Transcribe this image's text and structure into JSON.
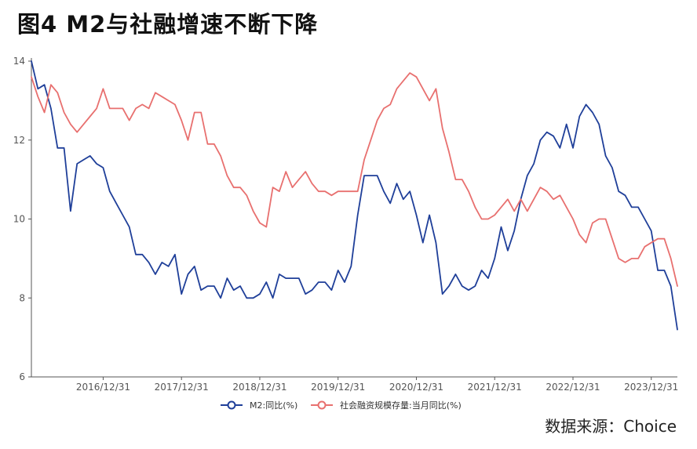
{
  "title": "图4  M2与社融增速不断下降",
  "source": "数据来源：Choice",
  "chart_data": {
    "type": "line",
    "x": [
      "2016/01",
      "2016/02",
      "2016/03",
      "2016/04",
      "2016/05",
      "2016/06",
      "2016/07",
      "2016/08",
      "2016/09",
      "2016/10",
      "2016/11",
      "2016/12",
      "2017/01",
      "2017/02",
      "2017/03",
      "2017/04",
      "2017/05",
      "2017/06",
      "2017/07",
      "2017/08",
      "2017/09",
      "2017/10",
      "2017/11",
      "2017/12",
      "2018/01",
      "2018/02",
      "2018/03",
      "2018/04",
      "2018/05",
      "2018/06",
      "2018/07",
      "2018/08",
      "2018/09",
      "2018/10",
      "2018/11",
      "2018/12",
      "2019/01",
      "2019/02",
      "2019/03",
      "2019/04",
      "2019/05",
      "2019/06",
      "2019/07",
      "2019/08",
      "2019/09",
      "2019/10",
      "2019/11",
      "2019/12",
      "2020/01",
      "2020/02",
      "2020/03",
      "2020/04",
      "2020/05",
      "2020/06",
      "2020/07",
      "2020/08",
      "2020/09",
      "2020/10",
      "2020/11",
      "2020/12",
      "2021/01",
      "2021/02",
      "2021/03",
      "2021/04",
      "2021/05",
      "2021/06",
      "2021/07",
      "2021/08",
      "2021/09",
      "2021/10",
      "2021/11",
      "2021/12",
      "2022/01",
      "2022/02",
      "2022/03",
      "2022/04",
      "2022/05",
      "2022/06",
      "2022/07",
      "2022/08",
      "2022/09",
      "2022/10",
      "2022/11",
      "2022/12",
      "2023/01",
      "2023/02",
      "2023/03",
      "2023/04",
      "2023/05",
      "2023/06",
      "2023/07",
      "2023/08",
      "2023/09",
      "2023/10",
      "2023/11",
      "2023/12",
      "2024/01",
      "2024/02",
      "2024/03",
      "2024/04"
    ],
    "x_ticks": [
      "2016/12/31",
      "2017/12/31",
      "2018/12/31",
      "2019/12/31",
      "2020/12/31",
      "2021/12/31",
      "2022/12/31",
      "2023/12/31"
    ],
    "ylim": [
      6,
      14
    ],
    "y_ticks": [
      "6",
      "8",
      "10",
      "12",
      "14"
    ],
    "grid": false,
    "legend_position": "bottom-center",
    "series": [
      {
        "name": "M2:同比(%)",
        "color": "#1f3f99",
        "values": [
          14.0,
          13.3,
          13.4,
          12.8,
          11.8,
          11.8,
          10.2,
          11.4,
          11.5,
          11.6,
          11.4,
          11.3,
          10.7,
          10.4,
          10.1,
          9.8,
          9.1,
          9.1,
          8.9,
          8.6,
          8.9,
          8.8,
          9.1,
          8.1,
          8.6,
          8.8,
          8.2,
          8.3,
          8.3,
          8.0,
          8.5,
          8.2,
          8.3,
          8.0,
          8.0,
          8.1,
          8.4,
          8.0,
          8.6,
          8.5,
          8.5,
          8.5,
          8.1,
          8.2,
          8.4,
          8.4,
          8.2,
          8.7,
          8.4,
          8.8,
          10.1,
          11.1,
          11.1,
          11.1,
          10.7,
          10.4,
          10.9,
          10.5,
          10.7,
          10.1,
          9.4,
          10.1,
          9.4,
          8.1,
          8.3,
          8.6,
          8.3,
          8.2,
          8.3,
          8.7,
          8.5,
          9.0,
          9.8,
          9.2,
          9.7,
          10.5,
          11.1,
          11.4,
          12.0,
          12.2,
          12.1,
          11.8,
          12.4,
          11.8,
          12.6,
          12.9,
          12.7,
          12.4,
          11.6,
          11.3,
          10.7,
          10.6,
          10.3,
          10.3,
          10.0,
          9.7,
          8.7,
          8.7,
          8.3,
          7.2
        ]
      },
      {
        "name": "社会融资规模存量:当月同比(%)",
        "color": "#e8706f",
        "values": [
          13.6,
          13.1,
          12.7,
          13.4,
          13.2,
          12.7,
          12.4,
          12.2,
          12.4,
          12.6,
          12.8,
          13.3,
          12.8,
          12.8,
          12.8,
          12.5,
          12.8,
          12.9,
          12.8,
          13.2,
          13.1,
          13.0,
          12.9,
          12.5,
          12.0,
          12.7,
          12.7,
          11.9,
          11.9,
          11.6,
          11.1,
          10.8,
          10.8,
          10.6,
          10.2,
          9.9,
          9.8,
          10.8,
          10.7,
          11.2,
          10.8,
          11.0,
          11.2,
          10.9,
          10.7,
          10.7,
          10.6,
          10.7,
          10.7,
          10.7,
          10.7,
          11.5,
          12.0,
          12.5,
          12.8,
          12.9,
          13.3,
          13.5,
          13.7,
          13.6,
          13.3,
          13.0,
          13.3,
          12.3,
          11.7,
          11.0,
          11.0,
          10.7,
          10.3,
          10.0,
          10.0,
          10.1,
          10.3,
          10.5,
          10.2,
          10.5,
          10.2,
          10.5,
          10.8,
          10.7,
          10.5,
          10.6,
          10.3,
          10.0,
          9.6,
          9.4,
          9.9,
          10.0,
          10.0,
          9.5,
          9.0,
          8.9,
          9.0,
          9.0,
          9.3,
          9.4,
          9.5,
          9.5,
          9.0,
          8.3
        ]
      }
    ]
  }
}
